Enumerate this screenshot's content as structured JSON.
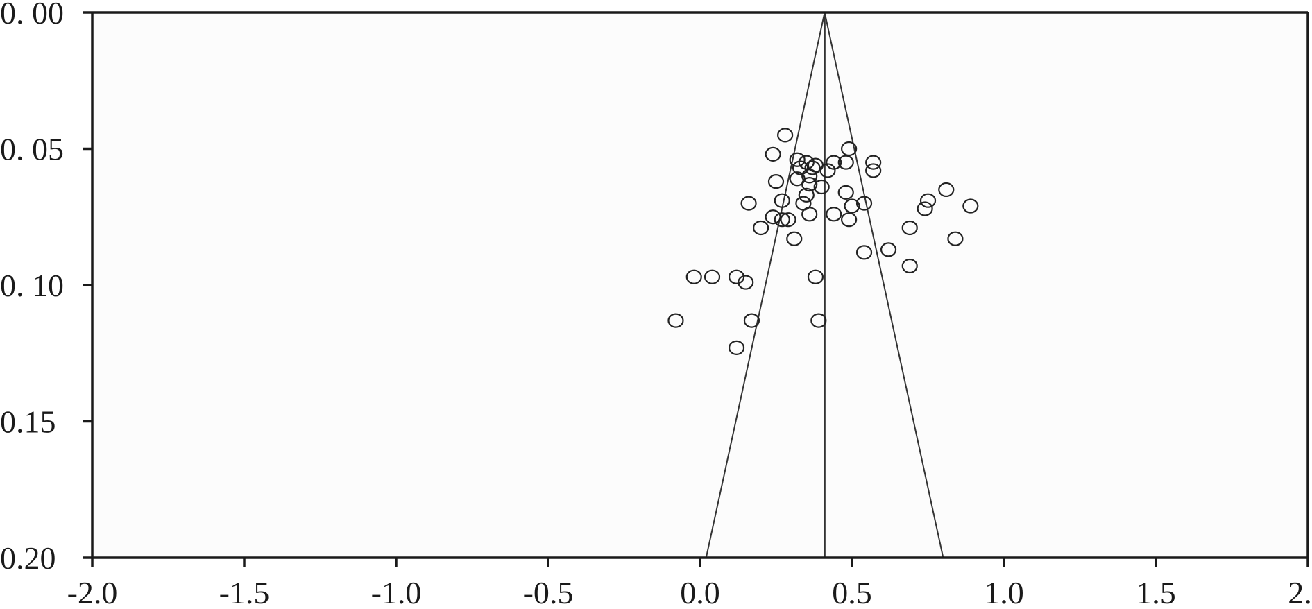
{
  "chart_data": {
    "type": "scatter",
    "title": "",
    "xlabel": "",
    "ylabel": "",
    "xlim": [
      -2.0,
      2.0
    ],
    "ylim": [
      0.0,
      0.2
    ],
    "y_inverted": true,
    "x_ticks": [
      "-2.0",
      "-1.5",
      "-1.0",
      "-0.5",
      "0.0",
      "0.5",
      "1.0",
      "1.5",
      "2.0"
    ],
    "y_ticks": [
      "0. 00",
      "0. 05",
      "0. 10",
      "0.15",
      "0.20"
    ],
    "x_tick_values": [
      -2.0,
      -1.5,
      -1.0,
      -0.5,
      0.0,
      0.5,
      1.0,
      1.5,
      2.0
    ],
    "y_tick_values": [
      0.0,
      0.05,
      0.1,
      0.15,
      0.2
    ],
    "pooled_effect": 0.41,
    "funnel": {
      "apex": [
        0.41,
        0.0
      ],
      "base_left": [
        0.02,
        0.2
      ],
      "base_right": [
        0.8,
        0.2
      ]
    },
    "grid": false,
    "legend": "none",
    "plot_background": "#fcfcfc",
    "series": [
      {
        "points": [
          [
            0.28,
            0.045
          ],
          [
            0.49,
            0.05
          ],
          [
            0.24,
            0.052
          ],
          [
            0.32,
            0.054
          ],
          [
            0.35,
            0.055
          ],
          [
            0.38,
            0.056
          ],
          [
            0.44,
            0.055
          ],
          [
            0.48,
            0.055
          ],
          [
            0.57,
            0.055
          ],
          [
            0.33,
            0.057
          ],
          [
            0.37,
            0.057
          ],
          [
            0.42,
            0.058
          ],
          [
            0.57,
            0.058
          ],
          [
            0.36,
            0.06
          ],
          [
            0.32,
            0.061
          ],
          [
            0.25,
            0.062
          ],
          [
            0.36,
            0.063
          ],
          [
            0.4,
            0.064
          ],
          [
            0.48,
            0.066
          ],
          [
            0.81,
            0.065
          ],
          [
            0.35,
            0.067
          ],
          [
            0.27,
            0.069
          ],
          [
            0.16,
            0.07
          ],
          [
            0.34,
            0.07
          ],
          [
            0.54,
            0.07
          ],
          [
            0.75,
            0.069
          ],
          [
            0.5,
            0.071
          ],
          [
            0.89,
            0.071
          ],
          [
            0.74,
            0.072
          ],
          [
            0.36,
            0.074
          ],
          [
            0.44,
            0.074
          ],
          [
            0.24,
            0.075
          ],
          [
            0.27,
            0.076
          ],
          [
            0.29,
            0.076
          ],
          [
            0.49,
            0.076
          ],
          [
            0.2,
            0.079
          ],
          [
            0.69,
            0.079
          ],
          [
            0.31,
            0.083
          ],
          [
            0.84,
            0.083
          ],
          [
            0.62,
            0.087
          ],
          [
            0.54,
            0.088
          ],
          [
            0.69,
            0.093
          ],
          [
            -0.02,
            0.097
          ],
          [
            0.04,
            0.097
          ],
          [
            0.12,
            0.097
          ],
          [
            0.38,
            0.097
          ],
          [
            0.15,
            0.099
          ],
          [
            -0.08,
            0.113
          ],
          [
            0.17,
            0.113
          ],
          [
            0.39,
            0.113
          ],
          [
            0.12,
            0.123
          ]
        ]
      }
    ]
  }
}
